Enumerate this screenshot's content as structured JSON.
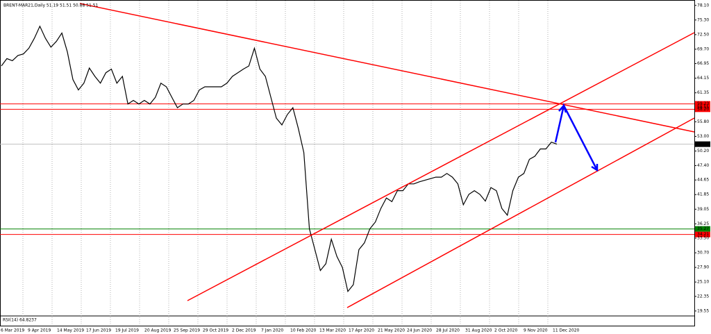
{
  "chart_data": {
    "type": "line",
    "title": "BRENT-MAR21,Daily  51.19 51.51 50.88 51.51",
    "indicator": "RSI(14) 64.8237",
    "color": "#000000",
    "values": [
      66.5,
      67.9,
      67.5,
      68.5,
      68.8,
      69.9,
      71.8,
      74.1,
      71.8,
      70.1,
      71.2,
      72.8,
      69.2,
      63.9,
      61.9,
      63.2,
      66.1,
      64.5,
      63.2,
      65.2,
      65.9,
      63.2,
      64.5,
      59.2,
      59.9,
      59.2,
      59.9,
      59.2,
      60.5,
      63.2,
      62.5,
      60.5,
      58.5,
      59.2,
      59.2,
      59.9,
      61.9,
      62.5,
      62.5,
      62.5,
      62.5,
      63.2,
      64.5,
      65.2,
      65.9,
      66.5,
      69.9,
      65.9,
      64.5,
      60.5,
      56.5,
      55.2,
      57.2,
      58.5,
      54.5,
      49.9,
      35.3,
      31.3,
      27.3,
      28.6,
      33.3,
      30.0,
      27.9,
      23.3,
      24.6,
      31.3,
      32.6,
      35.3,
      36.6,
      39.2,
      41.2,
      40.5,
      42.6,
      42.6,
      43.9,
      43.9,
      44.3,
      44.6,
      44.9,
      45.2,
      45.2,
      45.9,
      45.2,
      43.9,
      39.9,
      41.9,
      42.6,
      41.9,
      40.6,
      43.2,
      42.6,
      39.2,
      37.9,
      42.6,
      45.2,
      45.9,
      48.6,
      49.2,
      50.6,
      50.6,
      51.9,
      51.51
    ],
    "ylim": [
      19.0,
      78.6
    ],
    "yticks": [
      {
        "value": 78.1,
        "label": "78.10"
      },
      {
        "value": 75.3,
        "label": "75.30"
      },
      {
        "value": 72.5,
        "label": "72.50"
      },
      {
        "value": 69.7,
        "label": "69.70"
      },
      66.95,
      64.15,
      61.35,
      58.55,
      {
        "value": 55.8,
        "label": "55.80"
      },
      {
        "value": 53.0,
        "label": "53.00"
      },
      {
        "value": 50.2,
        "label": "50.20"
      },
      {
        "value": 47.4,
        "label": "47.40"
      },
      44.65,
      41.85,
      39.05,
      36.25,
      {
        "value": 33.5,
        "label": "33.50"
      },
      {
        "value": 30.7,
        "label": "30.70"
      },
      {
        "value": 27.9,
        "label": "27.90"
      },
      {
        "value": 25.1,
        "label": "25.10"
      },
      22.35,
      19.55
    ],
    "x_labels": [
      "6 Mar 2019",
      "9 Apr 2019",
      "14 May 2019",
      "17 Jun 2019",
      "19 Jul 2019",
      "20 Aug 2019",
      "25 Sep 2019",
      "29 Oct 2019",
      "2 Dec 2019",
      "7 Jan 2020",
      "10 Feb 2020",
      "13 Mar 2020",
      "17 Apr 2020",
      "21 May 2020",
      "24 Jun 2020",
      "28 Jul 2020",
      "31 Aug 2020",
      "2 Oct 2020",
      "9 Nov 2020",
      "11 Dec 2020"
    ],
    "levels": [
      {
        "value": 59.23,
        "color": "#ff0000"
      },
      {
        "value": 58.2,
        "label": "58.20",
        "color": "#ff0000"
      },
      {
        "value": 51.51,
        "color": "#c0c0c0"
      },
      {
        "value": 35.27,
        "color": "#008000"
      },
      {
        "value": 34.21,
        "color": "#ff0000"
      }
    ]
  }
}
